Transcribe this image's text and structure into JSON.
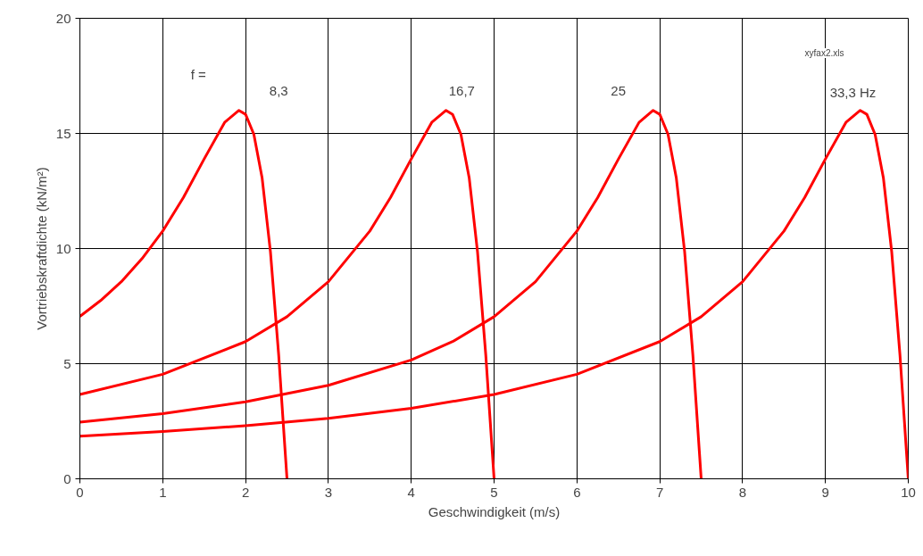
{
  "chart_data": {
    "type": "line",
    "xlabel": "Geschwindigkeit (m/s)",
    "ylabel": "Vortriebskraftdichte (kN/m²)",
    "xlim": [
      0,
      10
    ],
    "ylim": [
      0,
      20
    ],
    "xticks": [
      0,
      1,
      2,
      3,
      4,
      5,
      6,
      7,
      8,
      9,
      10
    ],
    "yticks": [
      0,
      5,
      10,
      15,
      20
    ],
    "grid": true,
    "marker": "none",
    "line_style": "solid",
    "series": [
      {
        "color": "#ff0000",
        "x": [
          0,
          0.25,
          0.5,
          0.75,
          1,
          1.25,
          1.5,
          1.75,
          1.92,
          2,
          2.1,
          2.2,
          2.3,
          2.4,
          2.5
        ],
        "values": [
          7.05,
          7.74,
          8.56,
          9.56,
          10.76,
          12.22,
          13.89,
          15.49,
          16,
          15.83,
          14.96,
          13.06,
          9.87,
          5.36,
          0
        ]
      },
      {
        "color": "#ff0000",
        "x": [
          0,
          1,
          2,
          2.5,
          3,
          3.5,
          3.75,
          4,
          4.25,
          4.42,
          4.5,
          4.6,
          4.7,
          4.8,
          4.9,
          5
        ],
        "values": [
          3.66,
          4.54,
          5.96,
          7.04,
          8.56,
          10.76,
          12.22,
          13.89,
          15.49,
          16,
          15.82,
          14.95,
          13.06,
          9.86,
          5.36,
          0
        ]
      },
      {
        "color": "#ff0000",
        "x": [
          0,
          1,
          2,
          3,
          4,
          4.5,
          5,
          5.5,
          6,
          6.25,
          6.5,
          6.75,
          6.92,
          7,
          7.1,
          7.2,
          7.3,
          7.4,
          7.5
        ],
        "values": [
          2.46,
          2.83,
          3.34,
          4.06,
          5.16,
          5.96,
          7.04,
          8.56,
          10.76,
          12.21,
          13.88,
          15.48,
          16,
          15.83,
          14.96,
          13.06,
          9.87,
          5.36,
          0
        ]
      },
      {
        "color": "#ff0000",
        "x": [
          0,
          1,
          2,
          3,
          4,
          5,
          6,
          7,
          7.5,
          8,
          8.5,
          8.75,
          9,
          9.25,
          9.42,
          9.5,
          9.6,
          9.7,
          9.8,
          9.9,
          10
        ],
        "values": [
          1.85,
          2.05,
          2.31,
          2.63,
          3.06,
          3.66,
          4.54,
          5.96,
          7.04,
          8.56,
          10.76,
          12.22,
          13.89,
          15.49,
          16,
          15.83,
          14.95,
          13.06,
          9.86,
          5.36,
          0
        ]
      }
    ],
    "annotations": [
      {
        "text": "f =",
        "x": 1.43,
        "y": 17.56
      },
      {
        "text": "8,3",
        "x": 2.4,
        "y": 16.86
      },
      {
        "text": "16,7",
        "x": 4.61,
        "y": 16.86
      },
      {
        "text": "25",
        "x": 6.5,
        "y": 16.86
      },
      "33,3 Hz",
      "xyfax2.xls"
    ]
  }
}
